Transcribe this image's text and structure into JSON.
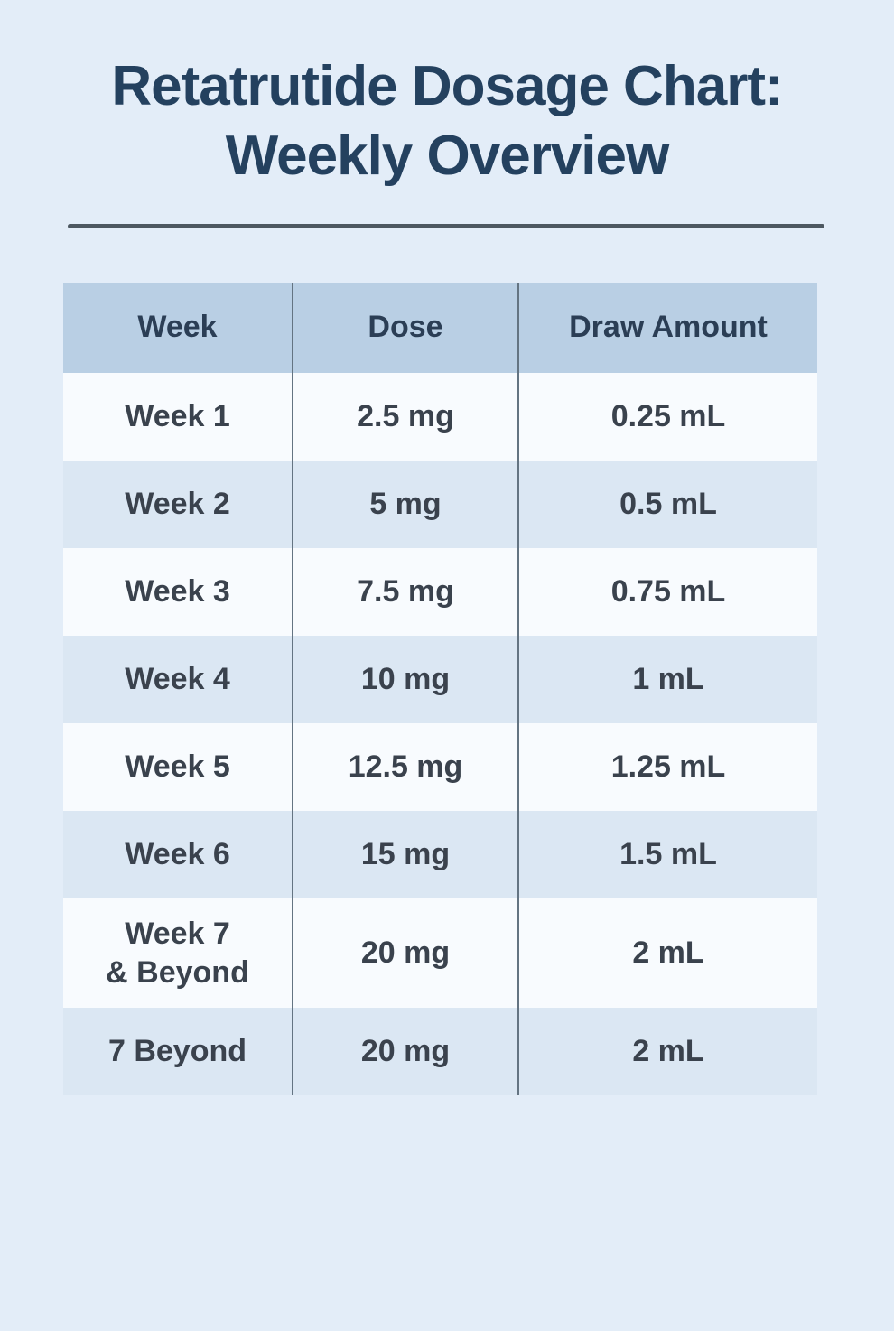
{
  "page": {
    "title_line1": "Retatrutide Dosage Chart:",
    "title_line2": "Weekly Overview"
  },
  "table": {
    "headers": [
      "Week",
      "Dose",
      "Draw Amount"
    ],
    "rows": [
      {
        "week": "Week 1",
        "dose": "2.5 mg",
        "draw": "0.25 mL"
      },
      {
        "week": "Week 2",
        "dose": "5 mg",
        "draw": "0.5 mL"
      },
      {
        "week": "Week 3",
        "dose": "7.5 mg",
        "draw": "0.75 mL"
      },
      {
        "week": "Week 4",
        "dose": "10 mg",
        "draw": "1 mL"
      },
      {
        "week": "Week 5",
        "dose": "12.5 mg",
        "draw": "1.25 mL"
      },
      {
        "week": "Week 6",
        "dose": "15 mg",
        "draw": "1.5 mL"
      },
      {
        "week": "Week 7\n& Beyond",
        "dose": "20 mg",
        "draw": "2 mL"
      },
      {
        "week": "7 Beyond",
        "dose": "20 mg",
        "draw": "2 mL"
      }
    ]
  },
  "chart_data": {
    "type": "table",
    "title": "Retatrutide Dosage Chart: Weekly Overview",
    "columns": [
      "Week",
      "Dose",
      "Draw Amount"
    ],
    "rows": [
      [
        "Week 1",
        "2.5 mg",
        "0.25 mL"
      ],
      [
        "Week 2",
        "5 mg",
        "0.5 mL"
      ],
      [
        "Week 3",
        "7.5 mg",
        "0.75 mL"
      ],
      [
        "Week 4",
        "10 mg",
        "1 mL"
      ],
      [
        "Week 5",
        "12.5 mg",
        "1.25 mL"
      ],
      [
        "Week 6",
        "15 mg",
        "1.5 mL"
      ],
      [
        "Week 7 & Beyond",
        "20 mg",
        "2 mL"
      ],
      [
        "7 Beyond",
        "20 mg",
        "2 mL"
      ]
    ],
    "dose_mg_by_week": [
      2.5,
      5,
      7.5,
      10,
      12.5,
      15,
      20,
      20
    ],
    "draw_ml_by_week": [
      0.25,
      0.5,
      0.75,
      1,
      1.25,
      1.5,
      2,
      2
    ]
  },
  "colors": {
    "page_bg": "#e3edf8",
    "header_bg": "#b9cfe4",
    "row_light": "#f8fbfe",
    "row_shade": "#dbe7f3",
    "title_color": "#24415f",
    "header_text": "#2b3e55",
    "body_text": "#3a424d",
    "rule_color": "#4d5861",
    "divider_color": "#647482"
  }
}
